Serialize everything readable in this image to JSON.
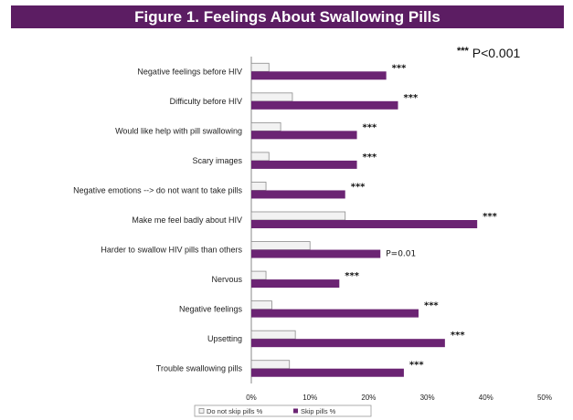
{
  "chart_data": {
    "type": "bar",
    "orientation": "horizontal",
    "title": "Figure 1. Feelings About Swallowing Pills",
    "significance_note": {
      "stars": "***",
      "text": "P<0.001"
    },
    "categories": [
      "Negative feelings before HIV",
      "Difficulty before HIV",
      "Would like help with pill swallowing",
      "Scary images",
      "Negative emotions --> do not want to take pills",
      "Make me feel badly about HIV",
      "Harder to swallow HIV pills than others",
      "Nervous",
      "Negative feelings",
      "Upsetting",
      "Trouble swallowing  pills"
    ],
    "series": [
      {
        "name": "Do not skip pills %",
        "values": [
          3,
          7,
          5,
          3,
          2.5,
          16,
          10,
          2.5,
          3.5,
          7.5,
          6.5
        ]
      },
      {
        "name": "Skip pills %",
        "values": [
          23,
          25,
          18,
          18,
          16,
          38.5,
          22,
          15,
          28.5,
          33,
          26
        ]
      }
    ],
    "annotations": [
      "***",
      "***",
      "***",
      "***",
      "***",
      "***",
      "P=0.01",
      "***",
      "***",
      "***",
      "***"
    ],
    "xlim": [
      0,
      50
    ],
    "x_ticks": [
      "0%",
      "10%",
      "20%",
      "30%",
      "40%",
      "50%"
    ],
    "grid": false,
    "legend_position": "bottom",
    "colors": {
      "series0_fill": "#f2f2f2",
      "series0_stroke": "#8c8c8c",
      "series1_fill": "#6b2473",
      "banner": "#5c1d63"
    }
  }
}
